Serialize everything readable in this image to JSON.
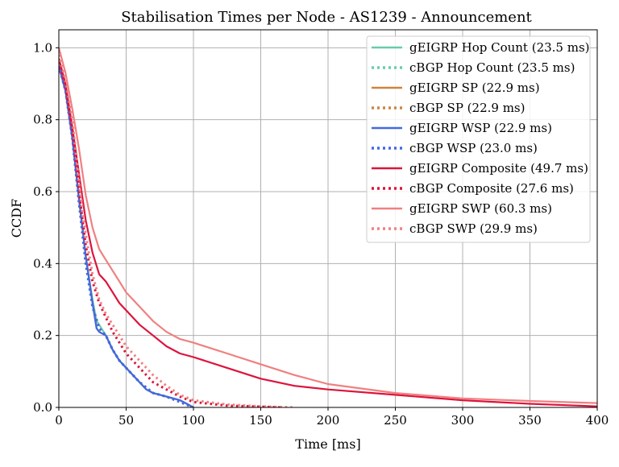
{
  "chart_data": {
    "type": "line",
    "title": "Stabilisation Times per Node - AS1239 - Announcement",
    "xlabel": "Time [ms]",
    "ylabel": "CCDF",
    "xlim": [
      0,
      400
    ],
    "ylim": [
      0,
      1.05
    ],
    "xticks": [
      0,
      50,
      100,
      150,
      200,
      250,
      300,
      350,
      400
    ],
    "yticks": [
      0.0,
      0.2,
      0.4,
      0.6,
      0.8,
      1.0
    ],
    "xtick_labels": [
      "0",
      "50",
      "100",
      "150",
      "200",
      "250",
      "300",
      "350",
      "400"
    ],
    "ytick_labels": [
      "0.0",
      "0.2",
      "0.4",
      "0.6",
      "0.8",
      "1.0"
    ],
    "grid": true,
    "legend_position": "top-right",
    "series": [
      {
        "name": "gEIGRP Hop Count (23.5 ms)",
        "color": "#66cdaa",
        "style": "solid",
        "x": [
          0,
          5,
          10,
          15,
          20,
          25,
          28,
          30,
          35,
          40,
          45,
          50,
          60,
          65,
          70,
          80,
          90,
          95,
          100
        ],
        "y": [
          0.95,
          0.88,
          0.75,
          0.58,
          0.42,
          0.3,
          0.24,
          0.23,
          0.2,
          0.16,
          0.13,
          0.11,
          0.07,
          0.05,
          0.04,
          0.03,
          0.02,
          0.01,
          0.0
        ]
      },
      {
        "name": "cBGP Hop Count (23.5 ms)",
        "color": "#66cdaa",
        "style": "dotted",
        "x": [
          0,
          5,
          10,
          15,
          20,
          25,
          30,
          35,
          40,
          45,
          50,
          60,
          70,
          80,
          90,
          100
        ],
        "y": [
          0.95,
          0.88,
          0.75,
          0.57,
          0.4,
          0.28,
          0.22,
          0.2,
          0.16,
          0.13,
          0.11,
          0.07,
          0.04,
          0.03,
          0.015,
          0.0
        ]
      },
      {
        "name": "gEIGRP SP (22.9 ms)",
        "color": "#cd853f",
        "style": "solid",
        "x": [
          0,
          5,
          10,
          15,
          20,
          25,
          28,
          30,
          35,
          40,
          45,
          50,
          60,
          65,
          70,
          80,
          90,
          95,
          100
        ],
        "y": [
          0.95,
          0.88,
          0.75,
          0.58,
          0.42,
          0.29,
          0.22,
          0.21,
          0.2,
          0.16,
          0.13,
          0.11,
          0.07,
          0.05,
          0.04,
          0.03,
          0.02,
          0.01,
          0.0
        ]
      },
      {
        "name": "cBGP SP (22.9 ms)",
        "color": "#cd853f",
        "style": "dotted",
        "x": [
          0,
          5,
          10,
          15,
          20,
          25,
          30,
          35,
          40,
          45,
          50,
          60,
          70,
          80,
          90,
          100
        ],
        "y": [
          0.95,
          0.88,
          0.75,
          0.57,
          0.4,
          0.28,
          0.22,
          0.2,
          0.16,
          0.13,
          0.11,
          0.07,
          0.04,
          0.03,
          0.015,
          0.0
        ]
      },
      {
        "name": "gEIGRP WSP (22.9 ms)",
        "color": "#4169e1",
        "style": "solid",
        "x": [
          0,
          5,
          10,
          15,
          20,
          25,
          28,
          30,
          35,
          40,
          45,
          50,
          60,
          65,
          70,
          80,
          90,
          95,
          100
        ],
        "y": [
          0.95,
          0.88,
          0.75,
          0.58,
          0.42,
          0.29,
          0.22,
          0.21,
          0.2,
          0.16,
          0.13,
          0.11,
          0.07,
          0.05,
          0.04,
          0.03,
          0.02,
          0.01,
          0.0
        ]
      },
      {
        "name": "cBGP WSP (23.0 ms)",
        "color": "#4169e1",
        "style": "dotted",
        "x": [
          0,
          5,
          10,
          15,
          20,
          25,
          30,
          35,
          40,
          45,
          50,
          60,
          70,
          80,
          90,
          100
        ],
        "y": [
          0.95,
          0.88,
          0.75,
          0.57,
          0.4,
          0.28,
          0.22,
          0.2,
          0.16,
          0.13,
          0.11,
          0.07,
          0.04,
          0.03,
          0.015,
          0.0
        ]
      },
      {
        "name": "gEIGRP Composite (49.7 ms)",
        "color": "#dc143c",
        "style": "solid",
        "x": [
          0,
          5,
          10,
          15,
          20,
          25,
          30,
          35,
          40,
          45,
          50,
          60,
          70,
          80,
          90,
          100,
          125,
          150,
          175,
          200,
          250,
          300,
          350,
          400
        ],
        "y": [
          0.97,
          0.9,
          0.78,
          0.65,
          0.52,
          0.43,
          0.37,
          0.35,
          0.32,
          0.29,
          0.27,
          0.23,
          0.2,
          0.17,
          0.15,
          0.14,
          0.11,
          0.08,
          0.06,
          0.05,
          0.035,
          0.02,
          0.01,
          0.003
        ]
      },
      {
        "name": "cBGP Composite (27.6 ms)",
        "color": "#dc143c",
        "style": "dotted",
        "x": [
          0,
          5,
          10,
          15,
          20,
          25,
          30,
          35,
          40,
          45,
          50,
          60,
          70,
          80,
          90,
          100,
          125,
          150,
          165
        ],
        "y": [
          0.96,
          0.89,
          0.77,
          0.6,
          0.45,
          0.35,
          0.29,
          0.25,
          0.21,
          0.18,
          0.15,
          0.11,
          0.07,
          0.05,
          0.03,
          0.015,
          0.005,
          0.002,
          0.0
        ]
      },
      {
        "name": "gEIGRP SWP (60.3 ms)",
        "color": "#f08080",
        "style": "solid",
        "x": [
          0,
          5,
          10,
          15,
          20,
          25,
          30,
          35,
          40,
          45,
          50,
          60,
          70,
          80,
          90,
          100,
          125,
          150,
          175,
          200,
          250,
          300,
          350,
          400
        ],
        "y": [
          1.0,
          0.93,
          0.83,
          0.72,
          0.59,
          0.5,
          0.44,
          0.41,
          0.38,
          0.35,
          0.32,
          0.28,
          0.24,
          0.21,
          0.19,
          0.18,
          0.15,
          0.12,
          0.09,
          0.065,
          0.04,
          0.025,
          0.018,
          0.012
        ]
      },
      {
        "name": "cBGP SWP (29.9 ms)",
        "color": "#f08080",
        "style": "dotted",
        "x": [
          0,
          5,
          10,
          15,
          20,
          25,
          30,
          35,
          40,
          45,
          50,
          60,
          70,
          80,
          90,
          100,
          125,
          150,
          175
        ],
        "y": [
          0.98,
          0.91,
          0.8,
          0.63,
          0.48,
          0.37,
          0.3,
          0.26,
          0.23,
          0.2,
          0.17,
          0.13,
          0.09,
          0.06,
          0.035,
          0.02,
          0.008,
          0.003,
          0.0
        ]
      }
    ]
  }
}
